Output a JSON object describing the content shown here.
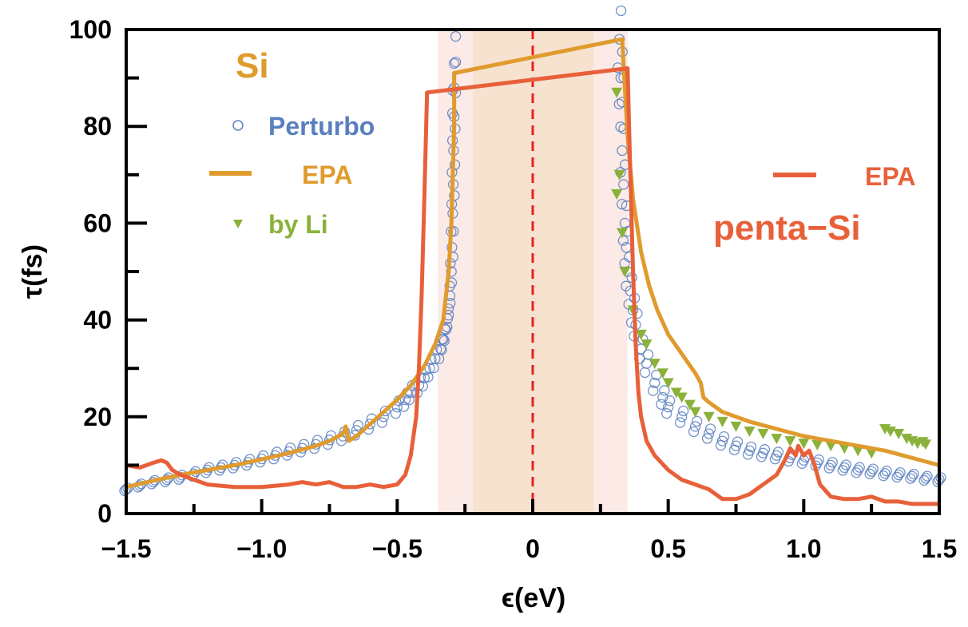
{
  "chart_data": {
    "type": "scatter",
    "title": "",
    "xlabel": "ϵ(eV)",
    "ylabel": "τ(fs)",
    "xlim": [
      -1.5,
      1.5
    ],
    "ylim": [
      0,
      100
    ],
    "xticks": [
      -1.5,
      -1.0,
      -0.5,
      0,
      0.5,
      1.0,
      1.5
    ],
    "xtick_labels": [
      "−1.5",
      "−1.0",
      "−0.5",
      "0",
      "0.5",
      "1.0",
      "1.5"
    ],
    "yticks": [
      0,
      20,
      40,
      60,
      80,
      100
    ],
    "ytick_labels": [
      "0",
      "20",
      "40",
      "60",
      "80",
      "100"
    ],
    "grid": false,
    "shaded_regions": [
      {
        "x": [
          -0.35,
          0.35
        ],
        "color": "#FBEAE6"
      },
      {
        "x": [
          -0.22,
          0.225
        ],
        "color": "#F7E2D0"
      }
    ],
    "vline": {
      "x": 0,
      "style": "dashed",
      "color": "#E8201E"
    },
    "legend_groups": [
      {
        "title": "Si",
        "title_color": "#E09B2E",
        "placement": "top-left",
        "entries": [
          {
            "label": "Perturbo",
            "series": "perturbo",
            "color": "#5A7FBF"
          },
          {
            "label": "EPA",
            "series": "si_epa",
            "color": "#E09B2E"
          },
          {
            "label": "by Li",
            "series": "by_li",
            "color": "#8AB23A"
          }
        ]
      },
      {
        "title": "penta−Si",
        "title_color": "#E8603A",
        "placement": "top-right",
        "entries": [
          {
            "label": "EPA",
            "series": "penta_epa",
            "color": "#E8603A"
          }
        ]
      }
    ],
    "series": [
      {
        "id": "perturbo",
        "name": "Perturbo",
        "kind": "open-circle",
        "color": "#5A7FBF",
        "x": [
          -1.5,
          -1.45,
          -1.4,
          -1.35,
          -1.3,
          -1.25,
          -1.2,
          -1.15,
          -1.1,
          -1.05,
          -1.0,
          -0.95,
          -0.9,
          -0.85,
          -0.8,
          -0.75,
          -0.7,
          -0.65,
          -0.6,
          -0.55,
          -0.5,
          -0.47,
          -0.45,
          -0.42,
          -0.4,
          -0.38,
          -0.36,
          -0.34,
          -0.33,
          -0.32,
          -0.31,
          -0.305,
          -0.3,
          -0.298,
          -0.295,
          -0.293,
          -0.292,
          -0.29,
          -0.29,
          -0.29,
          0.32,
          0.325,
          0.33,
          0.33,
          0.335,
          0.34,
          0.345,
          0.35,
          0.36,
          0.37,
          0.38,
          0.4,
          0.42,
          0.45,
          0.48,
          0.5,
          0.55,
          0.6,
          0.65,
          0.7,
          0.75,
          0.8,
          0.85,
          0.9,
          0.95,
          1.0,
          1.05,
          1.1,
          1.15,
          1.2,
          1.25,
          1.3,
          1.35,
          1.4,
          1.45,
          1.5
        ],
        "y": [
          5,
          5.8,
          6.5,
          7,
          7.5,
          8.2,
          9,
          9.5,
          10,
          10.6,
          11.3,
          12,
          12.8,
          13.5,
          14.3,
          15.2,
          16,
          17.2,
          18.5,
          20,
          22,
          23.5,
          25,
          26.5,
          28,
          30,
          32,
          34,
          36,
          38,
          41,
          45,
          50,
          55,
          62,
          68,
          75,
          82,
          88,
          93,
          98,
          90,
          85,
          75,
          68,
          60,
          55,
          50,
          46,
          42,
          39,
          34,
          31,
          27,
          24,
          22,
          20,
          18,
          16.5,
          15,
          14,
          13,
          12.5,
          12,
          11.5,
          11,
          10.5,
          10,
          9.5,
          9,
          8.7,
          8.3,
          8,
          7.7,
          7.3,
          7
        ]
      },
      {
        "id": "si_epa",
        "name": "EPA",
        "kind": "line",
        "color": "#E09B2E",
        "x": [
          -1.5,
          -1.4,
          -1.3,
          -1.2,
          -1.1,
          -1.0,
          -0.9,
          -0.8,
          -0.75,
          -0.7,
          -0.69,
          -0.68,
          -0.65,
          -0.6,
          -0.55,
          -0.5,
          -0.45,
          -0.4,
          -0.36,
          -0.33,
          -0.31,
          -0.3,
          -0.295,
          -0.29,
          -0.29,
          0.33,
          0.34,
          0.35,
          0.37,
          0.4,
          0.43,
          0.46,
          0.5,
          0.55,
          0.6,
          0.62,
          0.63,
          0.65,
          0.7,
          0.8,
          0.9,
          1.0,
          1.05,
          1.1,
          1.2,
          1.3,
          1.4,
          1.5
        ],
        "y": [
          5.5,
          6.8,
          8,
          9,
          10,
          11.2,
          12.5,
          14,
          15,
          16.5,
          18,
          15,
          16,
          18.5,
          21,
          23.5,
          26.5,
          30.5,
          35,
          40,
          50,
          60,
          70,
          80,
          91,
          98,
          88,
          78,
          65,
          54,
          47,
          42,
          37,
          33,
          29,
          27,
          24,
          23,
          21,
          19,
          17.5,
          16,
          15.5,
          15,
          14,
          13,
          11.5,
          10
        ]
      },
      {
        "id": "by_li",
        "name": "by Li",
        "kind": "filled-triangle-down",
        "color": "#8AB23A",
        "x": [
          0.31,
          0.32,
          0.31,
          0.33,
          0.34,
          0.37,
          0.4,
          0.42,
          0.45,
          0.48,
          0.5,
          0.53,
          0.55,
          0.58,
          0.6,
          0.65,
          0.7,
          0.75,
          0.8,
          0.85,
          0.9,
          0.95,
          1.0,
          1.05,
          1.1,
          1.15,
          1.2,
          1.25,
          1.3,
          1.32,
          1.35,
          1.38,
          1.4,
          1.42,
          1.44,
          1.45
        ],
        "y": [
          87,
          70,
          66,
          58,
          50,
          42,
          37,
          35,
          31,
          29,
          27,
          25,
          24,
          22.5,
          21,
          20,
          19,
          18,
          17,
          16.5,
          15.5,
          15,
          14.5,
          14.2,
          14,
          13.5,
          13,
          12.5,
          17.5,
          17,
          16.5,
          15.5,
          15,
          14.5,
          14.8,
          14.3
        ]
      },
      {
        "id": "penta_epa",
        "name": "EPA",
        "kind": "line",
        "color": "#E8603A",
        "x": [
          -1.5,
          -1.45,
          -1.4,
          -1.37,
          -1.35,
          -1.33,
          -1.3,
          -1.25,
          -1.2,
          -1.1,
          -1.0,
          -0.9,
          -0.85,
          -0.8,
          -0.75,
          -0.7,
          -0.65,
          -0.6,
          -0.55,
          -0.5,
          -0.47,
          -0.45,
          -0.43,
          -0.42,
          -0.41,
          -0.4,
          -0.39,
          0.35,
          0.36,
          0.37,
          0.38,
          0.39,
          0.4,
          0.42,
          0.45,
          0.5,
          0.55,
          0.6,
          0.65,
          0.7,
          0.75,
          0.8,
          0.85,
          0.9,
          0.93,
          0.95,
          0.97,
          0.98,
          1.0,
          1.02,
          1.04,
          1.06,
          1.1,
          1.15,
          1.2,
          1.25,
          1.3,
          1.35,
          1.4,
          1.45,
          1.5
        ],
        "y": [
          10,
          9.5,
          10.5,
          11,
          10.5,
          9,
          8,
          7,
          6,
          5.5,
          5.5,
          6,
          6.5,
          6,
          6.5,
          5.5,
          5.5,
          6,
          5.5,
          6,
          8,
          12,
          20,
          30,
          45,
          65,
          87,
          92,
          70,
          50,
          35,
          25,
          20,
          15,
          12,
          9,
          7,
          6,
          5,
          3,
          3,
          4,
          6,
          8,
          11,
          13.5,
          12,
          14,
          12,
          13,
          10,
          6,
          3.5,
          3,
          3,
          3.5,
          2.5,
          2.5,
          2,
          2,
          2
        ]
      }
    ]
  }
}
